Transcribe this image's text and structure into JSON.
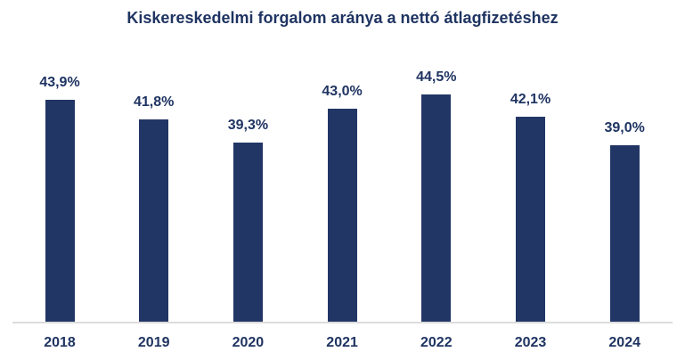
{
  "chart_data": {
    "type": "bar",
    "title": "Kiskereskedelmi forgalom aránya a nettó átlagfizetéshez",
    "categories": [
      "2018",
      "2019",
      "2020",
      "2021",
      "2022",
      "2023",
      "2024"
    ],
    "values": [
      43.9,
      41.8,
      39.3,
      43.0,
      44.5,
      42.1,
      39.0
    ],
    "value_labels": [
      "43,9%",
      "41,8%",
      "39,3%",
      "43,0%",
      "44,5%",
      "42,1%",
      "39,0%"
    ],
    "xlabel": "",
    "ylabel": "",
    "ylim": [
      20,
      48
    ],
    "grid": false,
    "legend": null,
    "bar_color": "#223666",
    "text_color": "#1f3462"
  }
}
